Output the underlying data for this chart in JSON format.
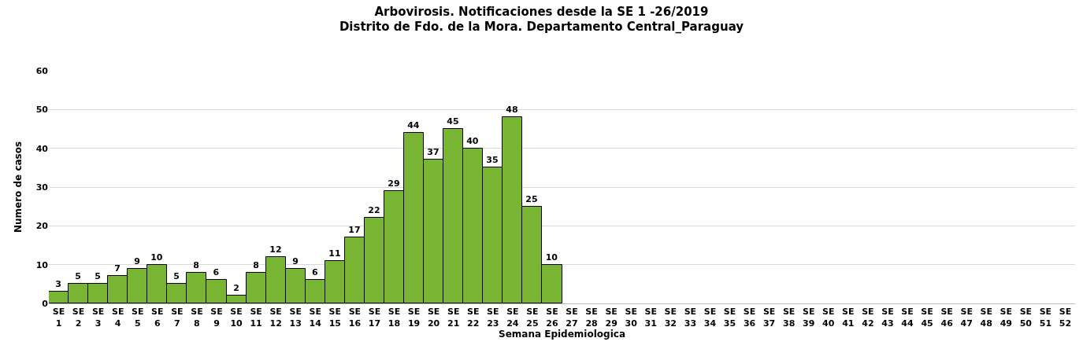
{
  "chart_data": {
    "type": "bar",
    "title": "Arbovirosis. Notificaciones desde la SE 1 -26/2019\nDistrito de Fdo. de la Mora. Departamento Central_Paraguay",
    "xlabel": "Semana Epidemiologica",
    "ylabel": "Numero de casos",
    "categories": [
      "SE 1",
      "SE 2",
      "SE 3",
      "SE 4",
      "SE 5",
      "SE 6",
      "SE 7",
      "SE 8",
      "SE 9",
      "SE 10",
      "SE 11",
      "SE 12",
      "SE 13",
      "SE 14",
      "SE 15",
      "SE 16",
      "SE 17",
      "SE 18",
      "SE 19",
      "SE 20",
      "SE 21",
      "SE 22",
      "SE 23",
      "SE 24",
      "SE 25",
      "SE 26",
      "SE 27",
      "SE 28",
      "SE 29",
      "SE 30",
      "SE 31",
      "SE 32",
      "SE 33",
      "SE 34",
      "SE 35",
      "SE 36",
      "SE 37",
      "SE 38",
      "SE 39",
      "SE 40",
      "SE 41",
      "SE 42",
      "SE 43",
      "SE 44",
      "SE 45",
      "SE 46",
      "SE 47",
      "SE 48",
      "SE 49",
      "SE 50",
      "SE 51",
      "SE 52"
    ],
    "values": [
      3,
      5,
      5,
      7,
      9,
      10,
      5,
      8,
      6,
      2,
      8,
      12,
      9,
      6,
      11,
      17,
      22,
      29,
      44,
      37,
      45,
      40,
      35,
      48,
      25,
      10,
      null,
      null,
      null,
      null,
      null,
      null,
      null,
      null,
      null,
      null,
      null,
      null,
      null,
      null,
      null,
      null,
      null,
      null,
      null,
      null,
      null,
      null,
      null,
      null,
      null,
      null
    ],
    "color": "#77b533",
    "ylim": [
      0,
      60
    ],
    "yticks": [
      0,
      10,
      20,
      30,
      40,
      50,
      60
    ],
    "grid": "y",
    "legend": false,
    "data_labels": true
  }
}
